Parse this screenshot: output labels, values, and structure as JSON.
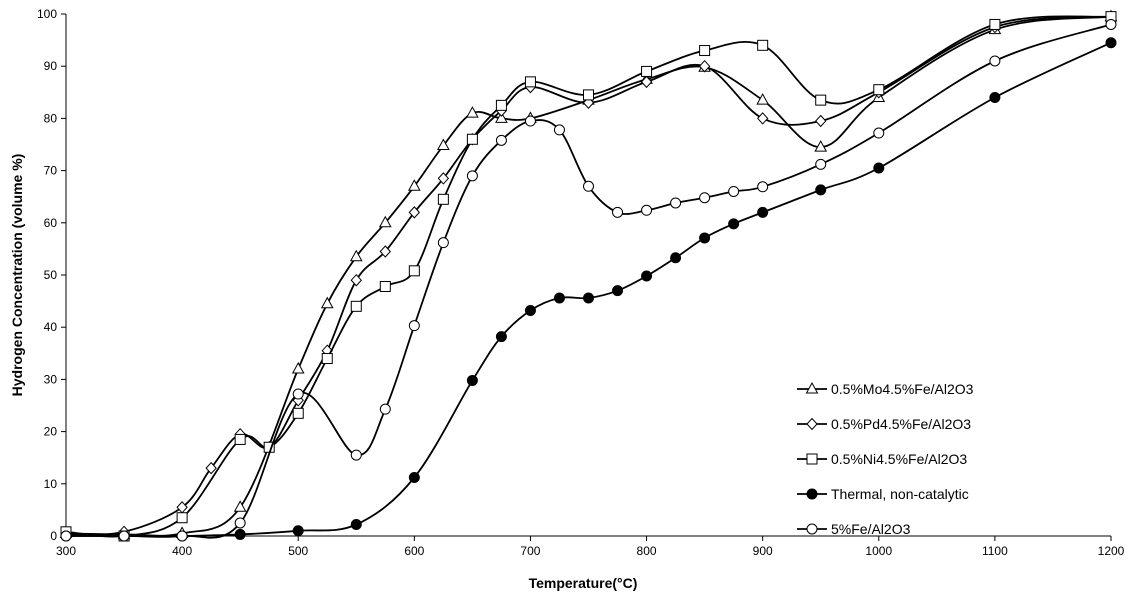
{
  "chart_data": {
    "type": "line",
    "title": "",
    "xlabel": "Temperature(°C)",
    "ylabel": "Hydrogen Concentration (volume %)",
    "xlim": [
      300,
      1200
    ],
    "ylim": [
      0,
      100
    ],
    "xticks": [
      300,
      400,
      500,
      600,
      700,
      800,
      900,
      1000,
      1100,
      1200
    ],
    "yticks": [
      0,
      10,
      20,
      30,
      40,
      50,
      60,
      70,
      80,
      90,
      100
    ],
    "grid": false,
    "legend_position": "right",
    "series": [
      {
        "name": "0.5%Mo4.5%Fe/Al2O3",
        "marker": "triangle-open",
        "points": [
          [
            300,
            0.5
          ],
          [
            350,
            0.3
          ],
          [
            400,
            0.5
          ],
          [
            450,
            5.5
          ],
          [
            500,
            32
          ],
          [
            525,
            44.5
          ],
          [
            550,
            53.5
          ],
          [
            575,
            60
          ],
          [
            600,
            67
          ],
          [
            625,
            74.8
          ],
          [
            650,
            81
          ],
          [
            675,
            80
          ],
          [
            700,
            80
          ],
          [
            750,
            83.5
          ],
          [
            800,
            87.5
          ],
          [
            850,
            89.8
          ],
          [
            900,
            83.5
          ],
          [
            950,
            74.5
          ],
          [
            1000,
            84
          ],
          [
            1100,
            97
          ],
          [
            1200,
            99.5
          ]
        ]
      },
      {
        "name": "0.5%Pd4.5%Fe/Al2O3",
        "marker": "diamond-open",
        "points": [
          [
            300,
            0.2
          ],
          [
            350,
            0.8
          ],
          [
            400,
            5.5
          ],
          [
            425,
            13
          ],
          [
            450,
            19.5
          ],
          [
            475,
            17
          ],
          [
            500,
            26
          ],
          [
            525,
            35.5
          ],
          [
            550,
            49
          ],
          [
            575,
            54.5
          ],
          [
            600,
            62
          ],
          [
            625,
            68.5
          ],
          [
            650,
            76
          ],
          [
            675,
            81.5
          ],
          [
            700,
            86
          ],
          [
            750,
            83
          ],
          [
            800,
            87
          ],
          [
            850,
            90
          ],
          [
            900,
            80
          ],
          [
            950,
            79.5
          ],
          [
            1000,
            85
          ],
          [
            1100,
            97.5
          ],
          [
            1200,
            99.5
          ]
        ]
      },
      {
        "name": "0.5%Ni4.5%Fe/Al2O3",
        "marker": "square-open",
        "points": [
          [
            300,
            0.8
          ],
          [
            350,
            0
          ],
          [
            400,
            3.5
          ],
          [
            450,
            18.5
          ],
          [
            475,
            17
          ],
          [
            500,
            23.5
          ],
          [
            525,
            34
          ],
          [
            550,
            44
          ],
          [
            575,
            47.8
          ],
          [
            600,
            50.8
          ],
          [
            625,
            64.5
          ],
          [
            650,
            76
          ],
          [
            675,
            82.5
          ],
          [
            700,
            87
          ],
          [
            750,
            84.5
          ],
          [
            800,
            89
          ],
          [
            850,
            93
          ],
          [
            900,
            94
          ],
          [
            950,
            83.5
          ],
          [
            1000,
            85.5
          ],
          [
            1100,
            98
          ],
          [
            1200,
            99.5
          ]
        ]
      },
      {
        "name": "Thermal, non-catalytic",
        "marker": "circle-filled",
        "points": [
          [
            300,
            0
          ],
          [
            350,
            0
          ],
          [
            400,
            0
          ],
          [
            450,
            0.3
          ],
          [
            500,
            1
          ],
          [
            550,
            2.2
          ],
          [
            600,
            11.2
          ],
          [
            650,
            29.8
          ],
          [
            675,
            38.2
          ],
          [
            700,
            43.2
          ],
          [
            725,
            45.6
          ],
          [
            750,
            45.6
          ],
          [
            775,
            47
          ],
          [
            800,
            49.8
          ],
          [
            825,
            53.3
          ],
          [
            850,
            57.1
          ],
          [
            875,
            59.8
          ],
          [
            900,
            62
          ],
          [
            950,
            66.3
          ],
          [
            1000,
            70.5
          ],
          [
            1100,
            84
          ],
          [
            1200,
            94.5
          ]
        ]
      },
      {
        "name": "5%Fe/Al2O3",
        "marker": "circle-open",
        "points": [
          [
            300,
            0
          ],
          [
            350,
            0
          ],
          [
            400,
            0
          ],
          [
            450,
            2.5
          ],
          [
            500,
            27.2
          ],
          [
            550,
            15.5
          ],
          [
            575,
            24.3
          ],
          [
            600,
            40.3
          ],
          [
            625,
            56.2
          ],
          [
            650,
            69
          ],
          [
            675,
            75.8
          ],
          [
            700,
            79.5
          ],
          [
            725,
            77.8
          ],
          [
            750,
            67
          ],
          [
            775,
            62
          ],
          [
            800,
            62.4
          ],
          [
            825,
            63.8
          ],
          [
            850,
            64.8
          ],
          [
            875,
            66
          ],
          [
            900,
            66.9
          ],
          [
            950,
            71.2
          ],
          [
            1000,
            77.2
          ],
          [
            1100,
            91
          ],
          [
            1200,
            98
          ]
        ]
      }
    ]
  }
}
